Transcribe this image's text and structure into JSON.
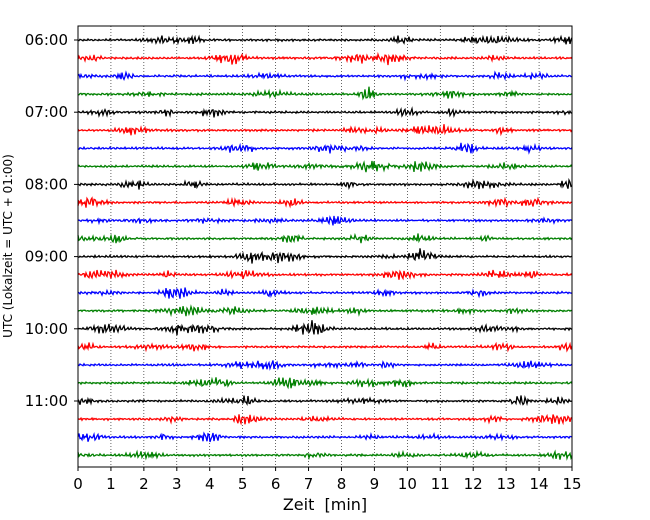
{
  "chart_data": {
    "type": "line",
    "xlabel": "Zeit  [min]",
    "ylabel": "UTC (Lokalzeit = UTC + 01:00)",
    "xlim": [
      0,
      15
    ],
    "x_ticks": [
      0,
      1,
      2,
      3,
      4,
      5,
      6,
      7,
      8,
      9,
      10,
      11,
      12,
      13,
      14,
      15
    ],
    "y_tick_labels": [
      "06:00",
      "07:00",
      "08:00",
      "09:00",
      "10:00",
      "11:00"
    ],
    "traces_per_hour": 4,
    "trace_minutes": 15,
    "first_trace_start": "06:00",
    "last_trace_start": "11:45",
    "trace_count": 24,
    "trace_colors": [
      "#000000",
      "#ff0000",
      "#0000ff",
      "#008000"
    ],
    "vertical_grid": "dotted",
    "series": [
      {
        "start": "06:00",
        "color": "#000000"
      },
      {
        "start": "06:15",
        "color": "#ff0000"
      },
      {
        "start": "06:30",
        "color": "#0000ff"
      },
      {
        "start": "06:45",
        "color": "#008000"
      },
      {
        "start": "07:00",
        "color": "#000000"
      },
      {
        "start": "07:15",
        "color": "#ff0000"
      },
      {
        "start": "07:30",
        "color": "#0000ff"
      },
      {
        "start": "07:45",
        "color": "#008000"
      },
      {
        "start": "08:00",
        "color": "#000000"
      },
      {
        "start": "08:15",
        "color": "#ff0000"
      },
      {
        "start": "08:30",
        "color": "#0000ff"
      },
      {
        "start": "08:45",
        "color": "#008000"
      },
      {
        "start": "09:00",
        "color": "#000000"
      },
      {
        "start": "09:15",
        "color": "#ff0000"
      },
      {
        "start": "09:30",
        "color": "#0000ff"
      },
      {
        "start": "09:45",
        "color": "#008000"
      },
      {
        "start": "10:00",
        "color": "#000000"
      },
      {
        "start": "10:15",
        "color": "#ff0000"
      },
      {
        "start": "10:30",
        "color": "#0000ff"
      },
      {
        "start": "10:45",
        "color": "#008000"
      },
      {
        "start": "11:00",
        "color": "#000000"
      },
      {
        "start": "11:15",
        "color": "#ff0000"
      },
      {
        "start": "11:30",
        "color": "#0000ff"
      },
      {
        "start": "11:45",
        "color": "#008000"
      }
    ]
  }
}
